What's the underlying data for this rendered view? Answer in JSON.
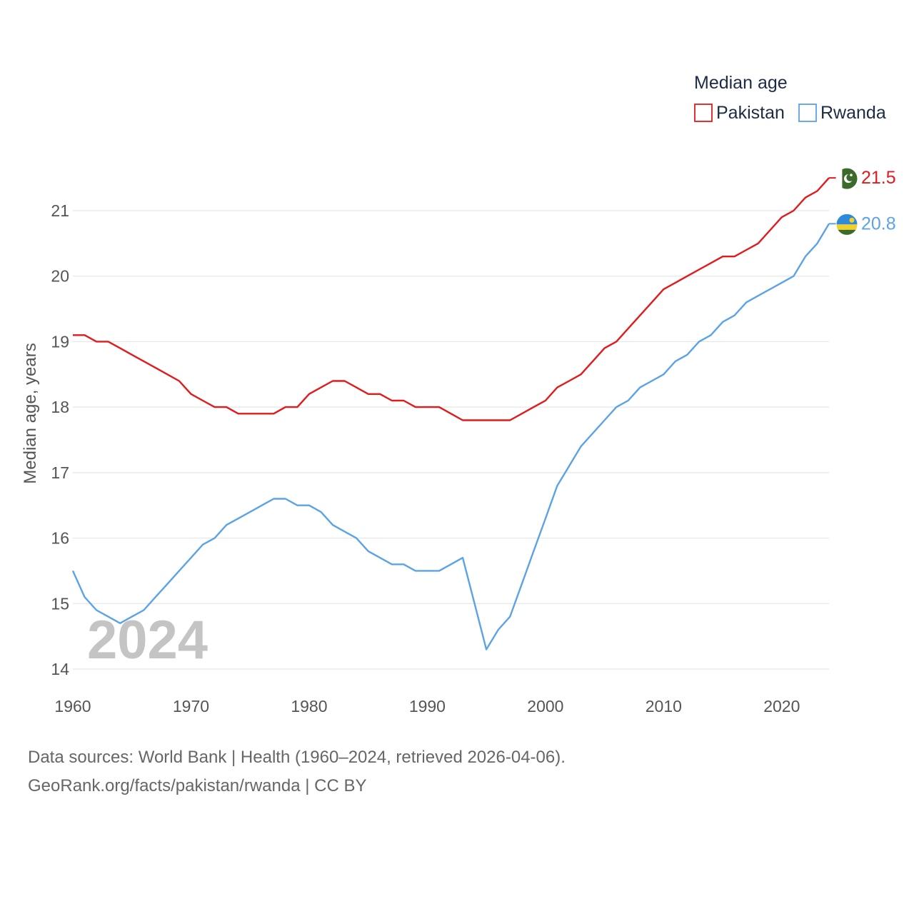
{
  "chart_data": {
    "type": "line",
    "ylabel": "Median age, years",
    "xlabel": "",
    "xlim": [
      1960,
      2024
    ],
    "ylim": [
      14,
      21.6
    ],
    "x_ticks": [
      1960,
      1970,
      1980,
      1990,
      2000,
      2010,
      2020
    ],
    "y_ticks": [
      14,
      15,
      16,
      17,
      18,
      19,
      20,
      21
    ],
    "legend": {
      "title": "Median age",
      "placement": "top-right"
    },
    "watermark_year": "2024",
    "grid": true,
    "x": [
      1960,
      1961,
      1962,
      1963,
      1964,
      1965,
      1966,
      1967,
      1968,
      1969,
      1970,
      1971,
      1972,
      1973,
      1974,
      1975,
      1976,
      1977,
      1978,
      1979,
      1980,
      1981,
      1982,
      1983,
      1984,
      1985,
      1986,
      1987,
      1988,
      1989,
      1990,
      1991,
      1992,
      1993,
      1994,
      1995,
      1996,
      1997,
      1998,
      1999,
      2000,
      2001,
      2002,
      2003,
      2004,
      2005,
      2006,
      2007,
      2008,
      2009,
      2010,
      2011,
      2012,
      2013,
      2014,
      2015,
      2016,
      2017,
      2018,
      2019,
      2020,
      2021,
      2022,
      2023,
      2024
    ],
    "series": [
      {
        "name": "Pakistan",
        "color": "#e31a1c",
        "end_label": "21.5",
        "flag_icon": "pakistan-flag-icon",
        "values": [
          19.1,
          19.1,
          19.0,
          19.0,
          18.9,
          18.8,
          18.7,
          18.6,
          18.5,
          18.4,
          18.2,
          18.1,
          18.0,
          18.0,
          17.9,
          17.9,
          17.9,
          17.9,
          18.0,
          18.0,
          18.2,
          18.3,
          18.4,
          18.4,
          18.3,
          18.2,
          18.2,
          18.1,
          18.1,
          18.0,
          18.0,
          18.0,
          17.9,
          17.8,
          17.8,
          17.8,
          17.8,
          17.8,
          17.9,
          18.0,
          18.1,
          18.3,
          18.4,
          18.5,
          18.7,
          18.9,
          19.0,
          19.2,
          19.4,
          19.6,
          19.8,
          19.9,
          20.0,
          20.1,
          20.2,
          20.3,
          20.3,
          20.4,
          20.5,
          20.7,
          20.9,
          21.0,
          21.2,
          21.3,
          21.5
        ]
      },
      {
        "name": "Rwanda",
        "color": "#5ba3e6",
        "end_label": "20.8",
        "flag_icon": "rwanda-flag-icon",
        "values": [
          15.5,
          15.1,
          14.9,
          14.8,
          14.7,
          14.8,
          14.9,
          15.1,
          15.3,
          15.5,
          15.7,
          15.9,
          16.0,
          16.2,
          16.3,
          16.4,
          16.5,
          16.6,
          16.6,
          16.5,
          16.5,
          16.4,
          16.2,
          16.1,
          16.0,
          15.8,
          15.7,
          15.6,
          15.6,
          15.5,
          15.5,
          15.5,
          15.6,
          15.7,
          15.0,
          14.3,
          14.6,
          14.8,
          15.3,
          15.8,
          16.3,
          16.8,
          17.1,
          17.4,
          17.6,
          17.8,
          18.0,
          18.1,
          18.3,
          18.4,
          18.5,
          18.7,
          18.8,
          19.0,
          19.1,
          19.3,
          19.4,
          19.6,
          19.7,
          19.8,
          19.9,
          20.0,
          20.3,
          20.5,
          20.8
        ]
      }
    ]
  },
  "footer": {
    "source_line": "Data sources: World Bank | Health (1960–2024, retrieved 2026-04-06).",
    "url_line": "GeoRank.org/facts/pakistan/rwanda | CC BY"
  }
}
